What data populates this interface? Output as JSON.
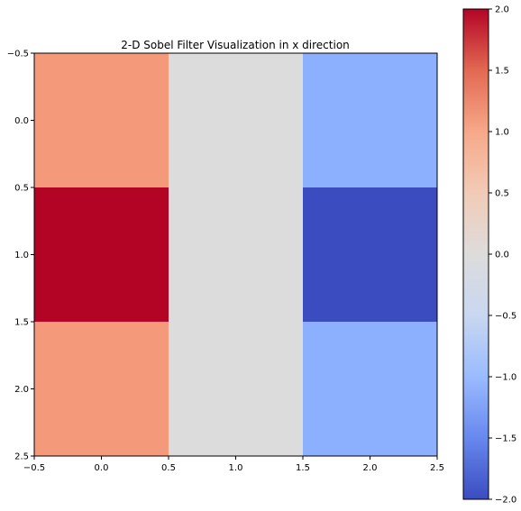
{
  "chart_data": {
    "type": "heatmap",
    "title": "2-D Sobel Filter Visualization in x direction",
    "xlabel": "",
    "ylabel": "",
    "matrix": [
      [
        1,
        0,
        -1
      ],
      [
        2,
        0,
        -2
      ],
      [
        1,
        0,
        -1
      ]
    ],
    "xlim": [
      -0.5,
      2.5
    ],
    "ylim": [
      2.5,
      -0.5
    ],
    "x_ticks": [
      -0.5,
      0.0,
      0.5,
      1.0,
      1.5,
      2.0,
      2.5
    ],
    "x_tick_labels": [
      "−0.5",
      "0.0",
      "0.5",
      "1.0",
      "1.5",
      "2.0",
      "2.5"
    ],
    "y_ticks": [
      -0.5,
      0.0,
      0.5,
      1.0,
      1.5,
      2.0,
      2.5
    ],
    "y_tick_labels": [
      "−0.5",
      "0.0",
      "0.5",
      "1.0",
      "1.5",
      "2.0",
      "2.5"
    ],
    "colormap": "coolwarm",
    "vmin": -2,
    "vmax": 2,
    "colorbar_ticks": [
      2.0,
      1.5,
      1.0,
      0.5,
      0.0,
      -0.5,
      -1.0,
      -1.5,
      -2.0
    ],
    "colorbar_tick_labels": [
      "2.0",
      "1.5",
      "1.0",
      "0.5",
      "0.0",
      "−0.5",
      "−1.0",
      "−1.5",
      "−2.0"
    ],
    "cell_colors": {
      "2": "#b40426",
      "1": "#f49a7b",
      "0": "#dddcdc",
      "-1": "#8db0fe",
      "-2": "#3b4cc0"
    },
    "colorbar_gradient": [
      "#3b4cc0",
      "#6788ee",
      "#9abbff",
      "#c9d7f0",
      "#dddcdc",
      "#f2cbb7",
      "#f7a889",
      "#e26952",
      "#b40426"
    ],
    "grid": false
  }
}
